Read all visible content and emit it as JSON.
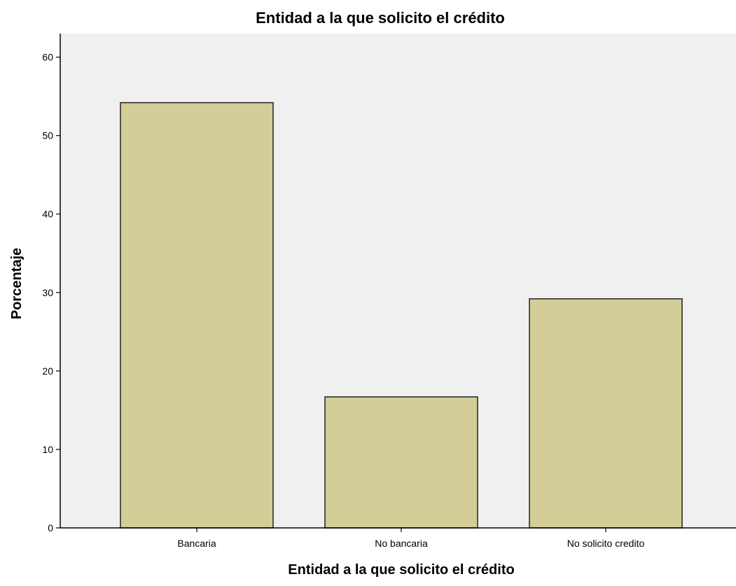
{
  "chart_data": {
    "type": "bar",
    "title": "Entidad a la que solicito el crédito",
    "xlabel": "Entidad a la que solicito el crédito",
    "ylabel": "Porcentaje",
    "categories": [
      "Bancaria",
      "No bancaria",
      "No solicito credito"
    ],
    "values": [
      54.2,
      16.7,
      29.2
    ],
    "ylim": [
      0,
      63
    ],
    "yticks": [
      0,
      10,
      20,
      30,
      40,
      50,
      60
    ],
    "grid": false,
    "legend": "none"
  },
  "colors": {
    "plot_background": "#f0f0f0",
    "bar_fill": "#d3ce97",
    "bar_stroke": "#222222",
    "axis": "#000000"
  }
}
